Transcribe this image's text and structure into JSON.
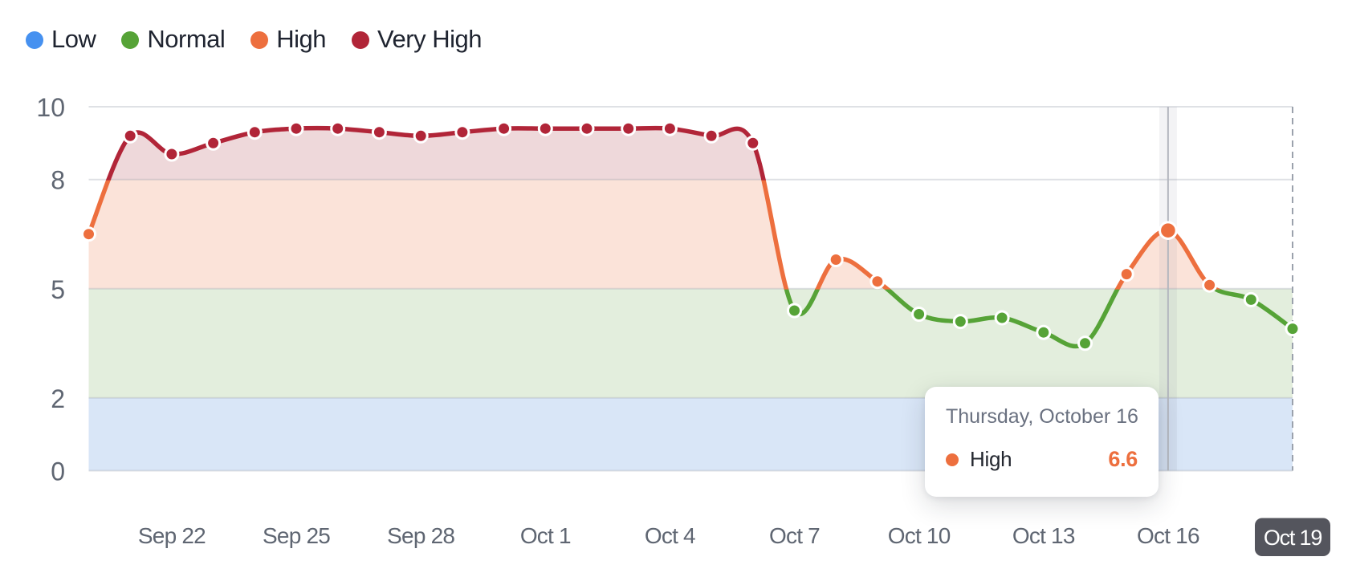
{
  "colors": {
    "low": "#4691f0",
    "normal": "#56a337",
    "high": "#ed6f3e",
    "very_high": "#b12538",
    "band_low": "#d9e6f7",
    "band_normal": "#e3eedd",
    "fill_high": "#fbe3d9",
    "fill_very_high": "#eed8da",
    "gridline": "#e3e5e9",
    "axis_label": "#5f6672",
    "legend_label": "#1f2430",
    "dashed_edge": "#9ba1ac",
    "crosshair_line": "#b4b7bf",
    "crosshair_stripe": "rgba(120,126,140,0.09)",
    "badge_bg": "#54555d",
    "badge_text": "#ffffff",
    "point_ring": "#ffffff"
  },
  "legend": {
    "items": [
      {
        "label": "Low",
        "color": "#4691f0"
      },
      {
        "label": "Normal",
        "color": "#56a337"
      },
      {
        "label": "High",
        "color": "#ed6f3e"
      },
      {
        "label": "Very High",
        "color": "#b12538"
      }
    ]
  },
  "tooltip": {
    "title": "Thursday, October 16",
    "series": "High",
    "value": "6.6",
    "color": "#ed6f3e"
  },
  "chart_data": {
    "type": "line",
    "title": "",
    "xlabel": "",
    "ylabel": "",
    "ylim": [
      0,
      10
    ],
    "y_ticks": [
      0,
      2,
      5,
      8,
      10
    ],
    "grid": true,
    "legend_position": "top-left",
    "smooth": true,
    "x": [
      "Sep 20",
      "Sep 21",
      "Sep 22",
      "Sep 23",
      "Sep 24",
      "Sep 25",
      "Sep 26",
      "Sep 27",
      "Sep 28",
      "Sep 29",
      "Sep 30",
      "Oct 1",
      "Oct 2",
      "Oct 3",
      "Oct 4",
      "Oct 5",
      "Oct 6",
      "Oct 7",
      "Oct 8",
      "Oct 9",
      "Oct 10",
      "Oct 11",
      "Oct 12",
      "Oct 13",
      "Oct 14",
      "Oct 15",
      "Oct 16",
      "Oct 17",
      "Oct 18",
      "Oct 19"
    ],
    "values": [
      6.5,
      9.2,
      8.7,
      9.0,
      9.3,
      9.4,
      9.4,
      9.3,
      9.2,
      9.3,
      9.4,
      9.4,
      9.4,
      9.4,
      9.4,
      9.2,
      9.0,
      4.4,
      5.8,
      5.2,
      4.3,
      4.1,
      4.2,
      3.8,
      3.5,
      5.4,
      6.6,
      5.1,
      4.7,
      3.9
    ],
    "x_tick_labels": [
      "Sep 22",
      "Sep 25",
      "Sep 28",
      "Oct 1",
      "Oct 4",
      "Oct 7",
      "Oct 10",
      "Oct 13",
      "Oct 16",
      "Oct 19"
    ],
    "x_tick_indices": [
      2,
      5,
      8,
      11,
      14,
      17,
      20,
      23,
      26,
      29
    ],
    "bands": [
      {
        "label": "Low",
        "from": 0,
        "to": 2
      },
      {
        "label": "Normal",
        "from": 2,
        "to": 5
      },
      {
        "label": "High",
        "from": 5,
        "to": 8
      },
      {
        "label": "Very High",
        "from": 8,
        "to": 10
      }
    ],
    "active_index": 26,
    "active_label": "Oct 16",
    "last_label_badge": "Oct 19"
  }
}
